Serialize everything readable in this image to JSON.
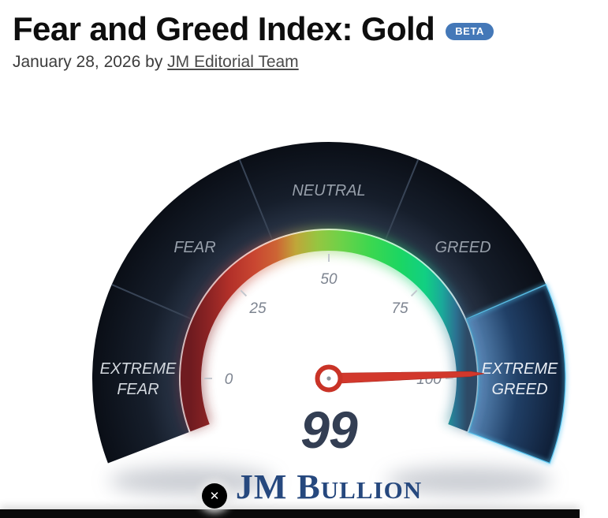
{
  "page": {
    "title": "Fear and Greed Index: Gold",
    "badge": "BETA",
    "date": "January 28, 2026",
    "byline_connector": "by",
    "author": "JM Editorial Team"
  },
  "chart_data": {
    "type": "gauge",
    "title": "Fear and Greed Index: Gold",
    "value": 99,
    "min": 0,
    "max": 100,
    "tick_labels": [
      0,
      25,
      50,
      75,
      100
    ],
    "segments": [
      {
        "label": "EXTREME FEAR"
      },
      {
        "label": "FEAR"
      },
      {
        "label": "NEUTRAL"
      },
      {
        "label": "GREED"
      },
      {
        "label": "EXTREME GREED"
      }
    ],
    "active_segment": "EXTREME GREED",
    "colors": {
      "needle": "#d2382c",
      "ring_dark": "#131b29",
      "ring_active": "#2e5a92",
      "active_outline": "#58c6f2",
      "arc_gradient": [
        "#6f1b20",
        "#c94631",
        "#c0a639",
        "#6fd148",
        "#1bd663",
        "#11cf83",
        "#2d4a66"
      ]
    }
  },
  "gauge": {
    "stacked_labels": {
      "extreme_fear": [
        "EXTREME",
        "FEAR"
      ],
      "extreme_greed": [
        "EXTREME",
        "GREED"
      ]
    }
  },
  "branding": {
    "logo": "JM Bullion"
  },
  "overlay": {
    "close_icon": "✕"
  }
}
